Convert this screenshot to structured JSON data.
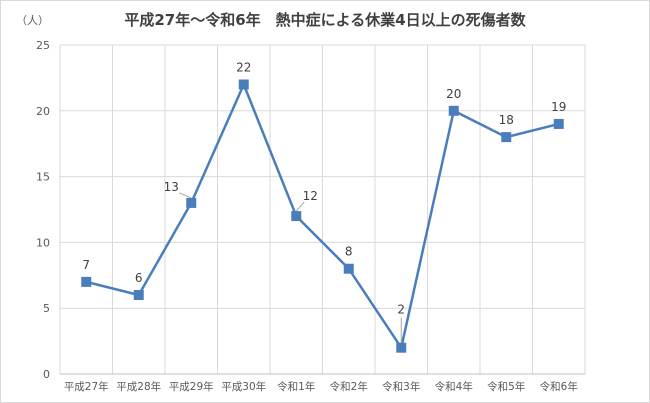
{
  "chart_data": {
    "type": "line",
    "title": "平成27年～令和6年　熱中症による休業4日以上の死傷者数",
    "ylabel": "（人）",
    "xlabel": "",
    "categories": [
      "平成27年",
      "平成28年",
      "平成29年",
      "平成30年",
      "令和1年",
      "令和2年",
      "令和3年",
      "令和4年",
      "令和5年",
      "令和6年"
    ],
    "series": [
      {
        "values": [
          7,
          6,
          13,
          22,
          12,
          8,
          2,
          20,
          18,
          19
        ]
      }
    ],
    "data_labels": [
      "7",
      "6",
      "13",
      "22",
      "12",
      "8",
      "2",
      "20",
      "18",
      "19"
    ],
    "y_ticks": [
      "0",
      "5",
      "10",
      "15",
      "20",
      "25"
    ],
    "ylim": [
      0,
      25
    ],
    "grid": true,
    "legend": "none",
    "marker": "square",
    "colors": {
      "series": "#4a7ebb",
      "grid": "#d9d9d9",
      "text": "#595959"
    }
  }
}
